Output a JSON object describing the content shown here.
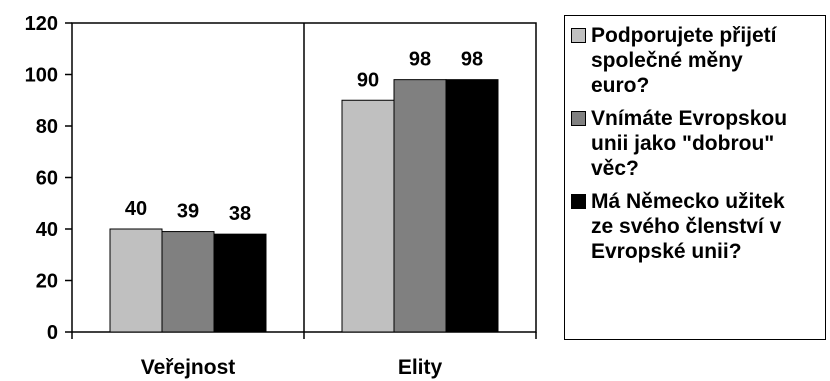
{
  "chart_data": {
    "type": "bar",
    "categories": [
      "Veřejnost",
      "Elity"
    ],
    "series": [
      {
        "name": "Podporujete přijetí\nspolečné měny\neuro?",
        "color": "#c0c0c0",
        "values": [
          40,
          90
        ]
      },
      {
        "name": "Vnímáte Evropskou\nunii jako \"dobrou\"\nvěc?",
        "color": "#808080",
        "values": [
          39,
          98
        ]
      },
      {
        "name": "Má Německo užitek\nze svého členství v\nEvropské unii?",
        "color": "#000000",
        "values": [
          38,
          98
        ]
      }
    ],
    "ylim": [
      0,
      120
    ],
    "yticks": [
      0,
      20,
      40,
      60,
      80,
      100,
      120
    ],
    "grid": false,
    "legend_position": "right"
  }
}
